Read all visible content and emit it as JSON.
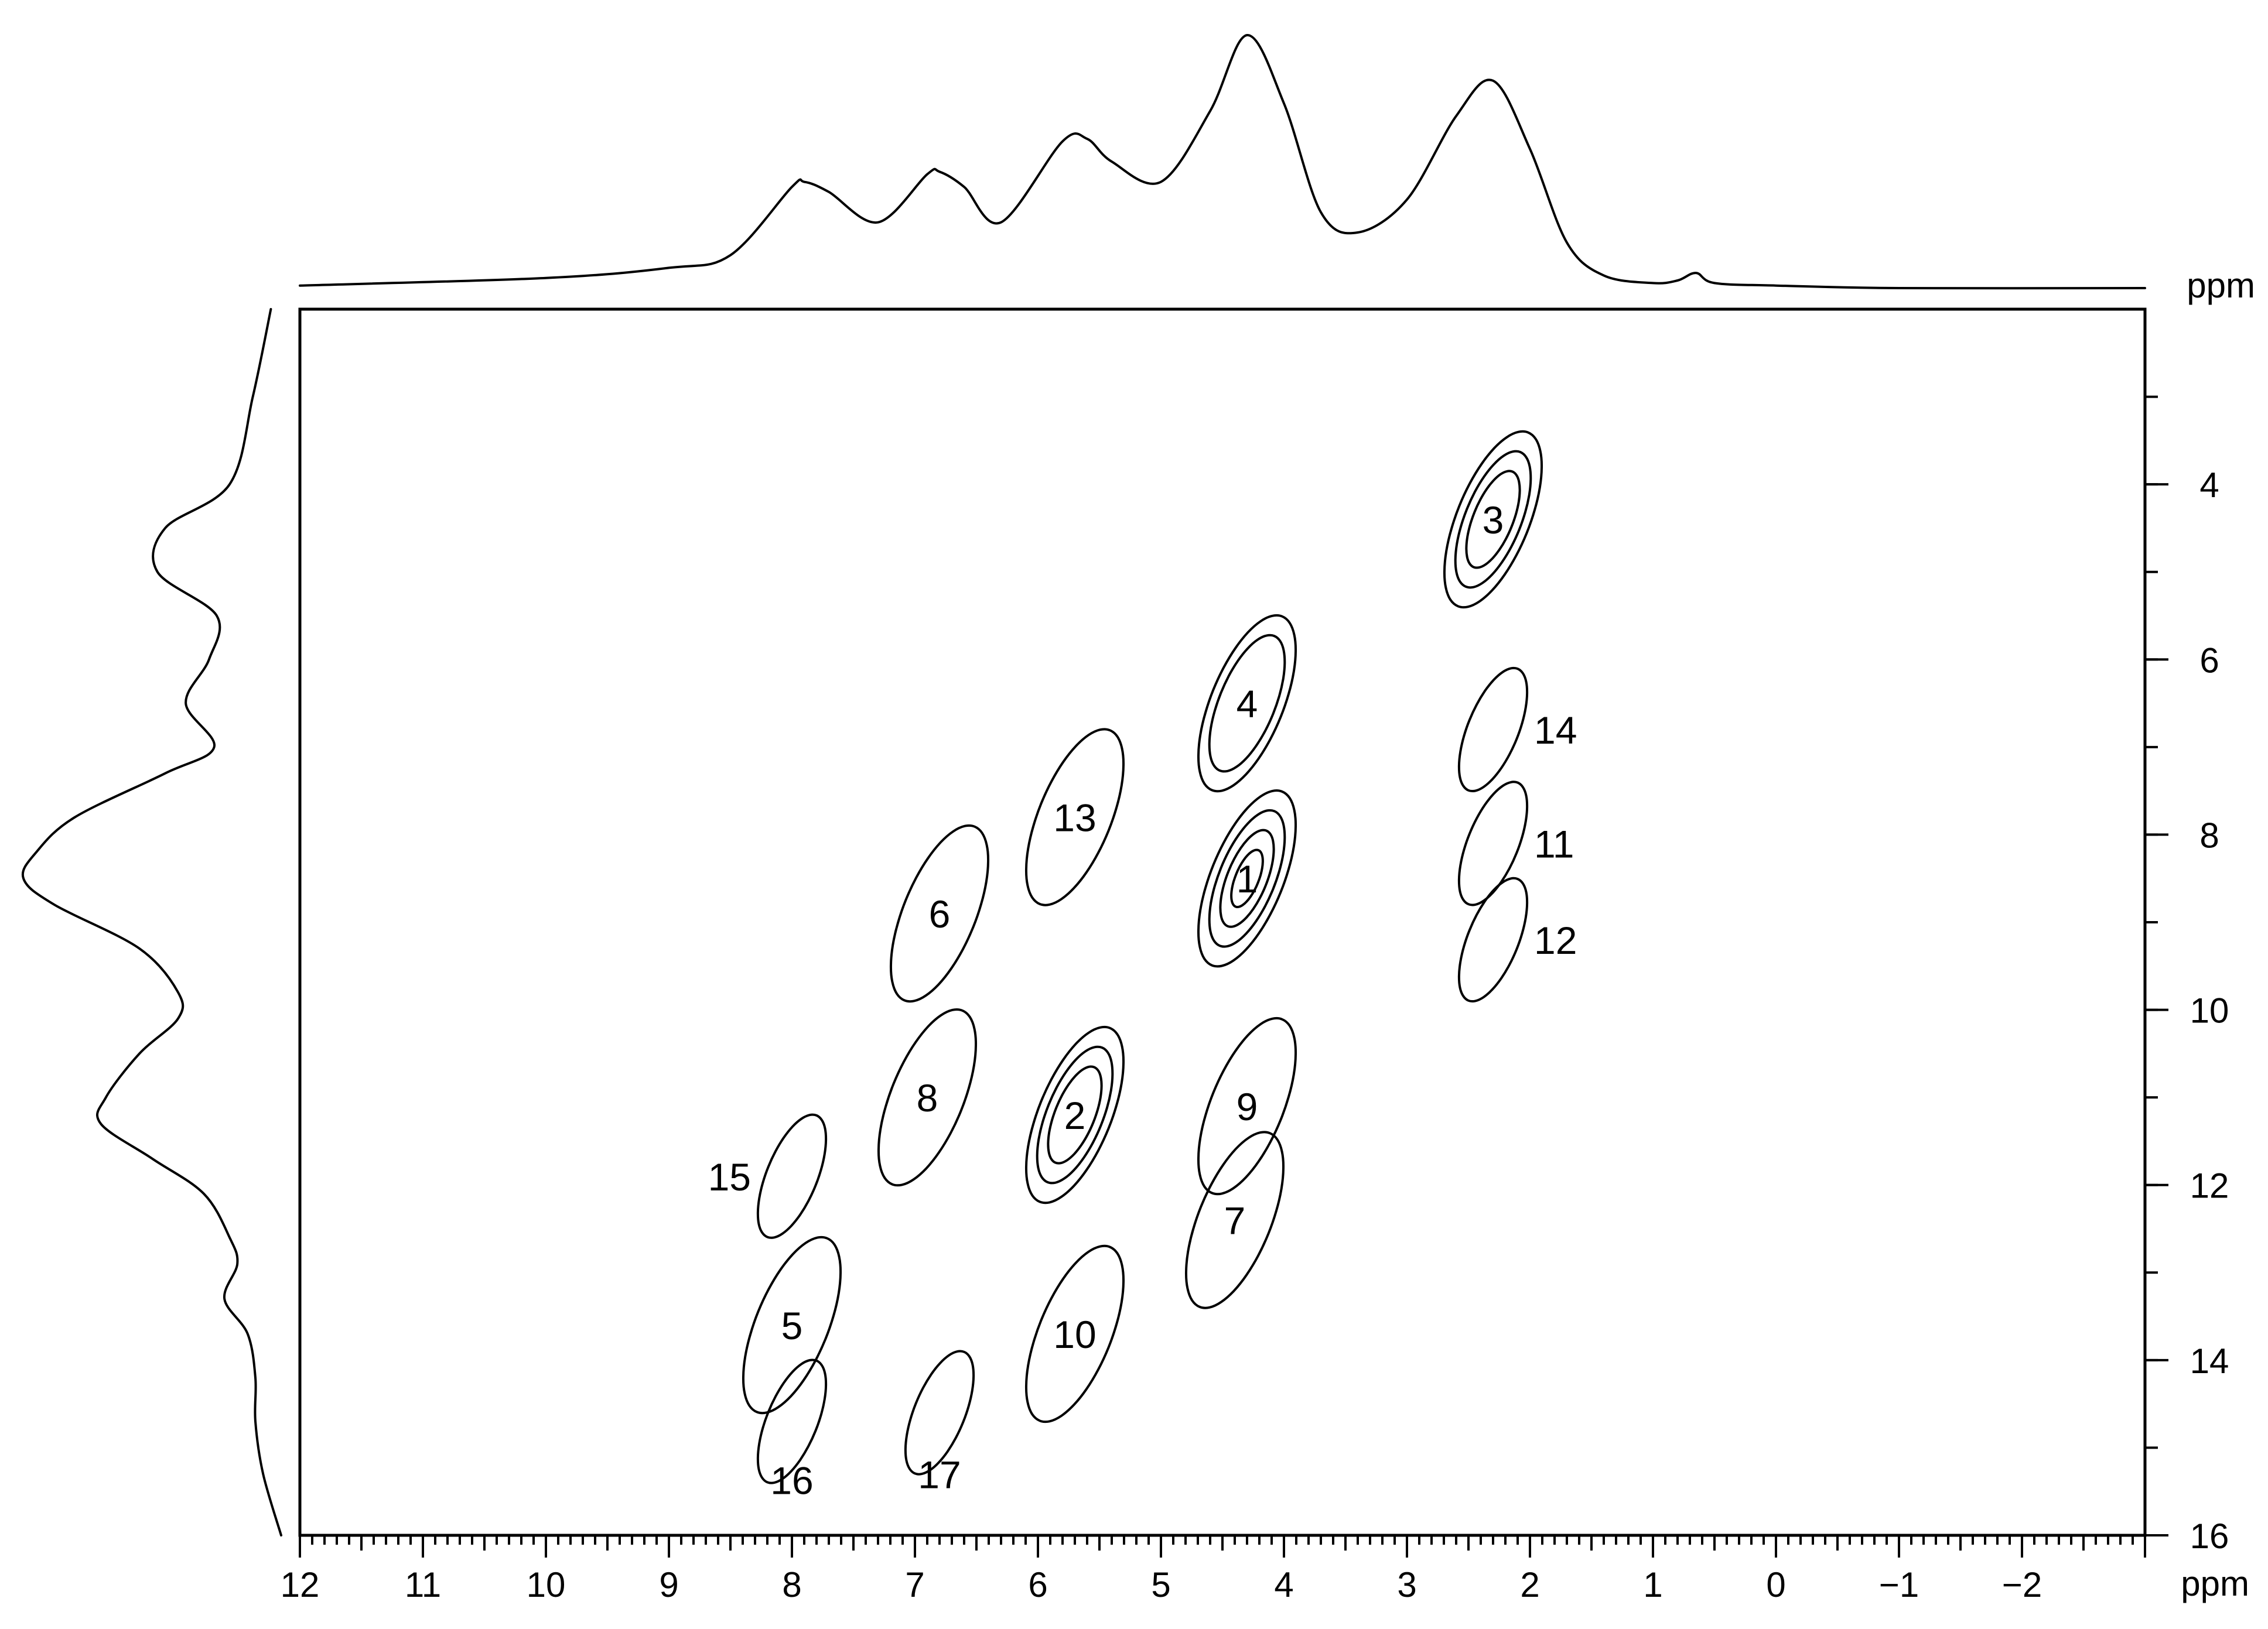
{
  "chart_data": {
    "type": "contour",
    "title": "",
    "xlabel": "ppm",
    "ylabel": "ppm",
    "top_projection_label": "ppm",
    "xlim": [
      12,
      -3
    ],
    "ylim": [
      2,
      16
    ],
    "x_tick_labels": [
      "12",
      "11",
      "10",
      "9",
      "8",
      "7",
      "6",
      "5",
      "4",
      "3",
      "2",
      "1",
      "0",
      "−1",
      "−2"
    ],
    "y_tick_labels": [
      "4",
      "6",
      "8",
      "10",
      "12",
      "14",
      "16"
    ],
    "peaks": [
      {
        "label": "1",
        "x": 4.3,
        "y": 8.5,
        "levels": 4
      },
      {
        "label": "2",
        "x": 5.7,
        "y": 11.2,
        "levels": 3
      },
      {
        "label": "3",
        "x": 2.3,
        "y": 4.4,
        "levels": 3
      },
      {
        "label": "4",
        "x": 4.3,
        "y": 6.5,
        "levels": 2
      },
      {
        "label": "5",
        "x": 8.0,
        "y": 13.6,
        "levels": 1
      },
      {
        "label": "6",
        "x": 6.8,
        "y": 8.9,
        "levels": 1
      },
      {
        "label": "7",
        "x": 4.4,
        "y": 12.4,
        "levels": 1
      },
      {
        "label": "8",
        "x": 6.9,
        "y": 11.0,
        "levels": 1
      },
      {
        "label": "9",
        "x": 4.3,
        "y": 11.1,
        "levels": 1
      },
      {
        "label": "10",
        "x": 5.7,
        "y": 13.7,
        "levels": 1
      },
      {
        "label": "11",
        "x": 2.3,
        "y": 8.1,
        "levels": 1
      },
      {
        "label": "12",
        "x": 2.3,
        "y": 9.2,
        "levels": 1
      },
      {
        "label": "13",
        "x": 5.7,
        "y": 7.8,
        "levels": 1
      },
      {
        "label": "14",
        "x": 2.3,
        "y": 6.8,
        "levels": 1
      },
      {
        "label": "15",
        "x": 8.0,
        "y": 11.9,
        "levels": 1
      },
      {
        "label": "16",
        "x": 8.0,
        "y": 14.7,
        "levels": 1
      },
      {
        "label": "17",
        "x": 6.8,
        "y": 14.6,
        "levels": 1
      }
    ],
    "top_projection": {
      "x_ppm": [
        12.0,
        10.0,
        9.0,
        8.5,
        8.0,
        7.9,
        7.7,
        7.3,
        6.9,
        6.8,
        6.6,
        6.3,
        5.8,
        5.6,
        5.4,
        5.0,
        4.6,
        4.3,
        4.0,
        3.7,
        3.4,
        3.0,
        2.6,
        2.3,
        2.0,
        1.7,
        1.4,
        1.0,
        0.8,
        0.65,
        0.5,
        0.0,
        -1.0,
        -3.0
      ],
      "intensity": [
        0.01,
        0.04,
        0.08,
        0.13,
        0.4,
        0.42,
        0.38,
        0.26,
        0.45,
        0.46,
        0.4,
        0.26,
        0.58,
        0.59,
        0.5,
        0.42,
        0.7,
        1.0,
        0.73,
        0.3,
        0.22,
        0.35,
        0.68,
        0.82,
        0.55,
        0.18,
        0.05,
        0.02,
        0.03,
        0.06,
        0.02,
        0.01,
        0.0,
        0.0
      ]
    },
    "left_projection": {
      "y_ppm": [
        2.0,
        3.0,
        4.0,
        4.5,
        5.0,
        5.5,
        6.0,
        6.5,
        7.0,
        7.3,
        7.8,
        8.2,
        8.5,
        8.8,
        9.3,
        9.8,
        10.1,
        10.5,
        11.0,
        11.3,
        11.7,
        12.1,
        12.6,
        12.9,
        13.3,
        13.7,
        14.2,
        14.7,
        15.3,
        16.0
      ],
      "intensity": [
        0.04,
        0.11,
        0.2,
        0.45,
        0.48,
        0.25,
        0.28,
        0.37,
        0.26,
        0.45,
        0.8,
        0.95,
        1.0,
        0.88,
        0.55,
        0.4,
        0.4,
        0.55,
        0.68,
        0.7,
        0.5,
        0.3,
        0.2,
        0.17,
        0.22,
        0.13,
        0.1,
        0.1,
        0.07,
        0.0
      ]
    }
  }
}
